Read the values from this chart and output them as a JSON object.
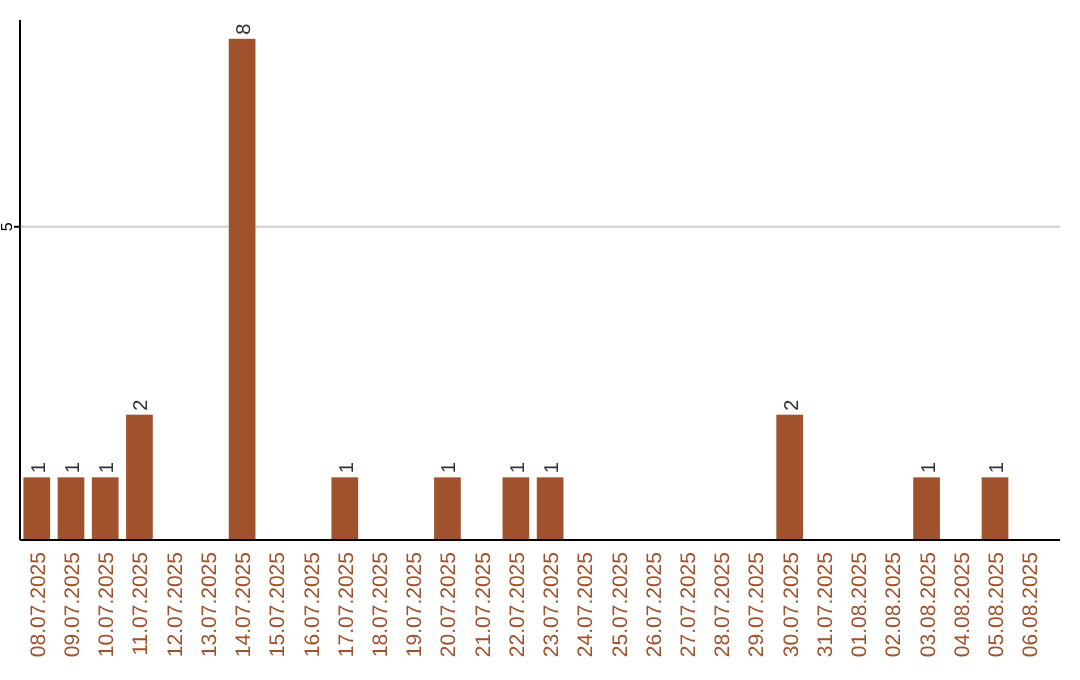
{
  "chart_data": {
    "type": "bar",
    "categories": [
      "08.07.2025",
      "09.07.2025",
      "10.07.2025",
      "11.07.2025",
      "12.07.2025",
      "13.07.2025",
      "14.07.2025",
      "15.07.2025",
      "16.07.2025",
      "17.07.2025",
      "18.07.2025",
      "19.07.2025",
      "20.07.2025",
      "21.07.2025",
      "22.07.2025",
      "23.07.2025",
      "24.07.2025",
      "25.07.2025",
      "26.07.2025",
      "27.07.2025",
      "28.07.2025",
      "29.07.2025",
      "30.07.2025",
      "31.07.2025",
      "01.08.2025",
      "02.08.2025",
      "03.08.2025",
      "04.08.2025",
      "05.08.2025",
      "06.08.2025"
    ],
    "values": [
      1,
      1,
      1,
      2,
      0,
      0,
      8,
      0,
      0,
      1,
      0,
      0,
      1,
      0,
      1,
      1,
      0,
      0,
      0,
      0,
      0,
      0,
      2,
      0,
      0,
      0,
      1,
      0,
      1,
      0
    ],
    "value_labels": [
      "1",
      "1",
      "1",
      "2",
      null,
      null,
      "8",
      null,
      null,
      "1",
      null,
      null,
      "1",
      null,
      "1",
      "1",
      null,
      null,
      null,
      null,
      null,
      null,
      "2",
      null,
      null,
      null,
      "1",
      null,
      "1",
      null
    ],
    "color": "#a0522d",
    "ylim": [
      0,
      8.3
    ],
    "yticks": [
      5
    ],
    "grid": "y"
  }
}
